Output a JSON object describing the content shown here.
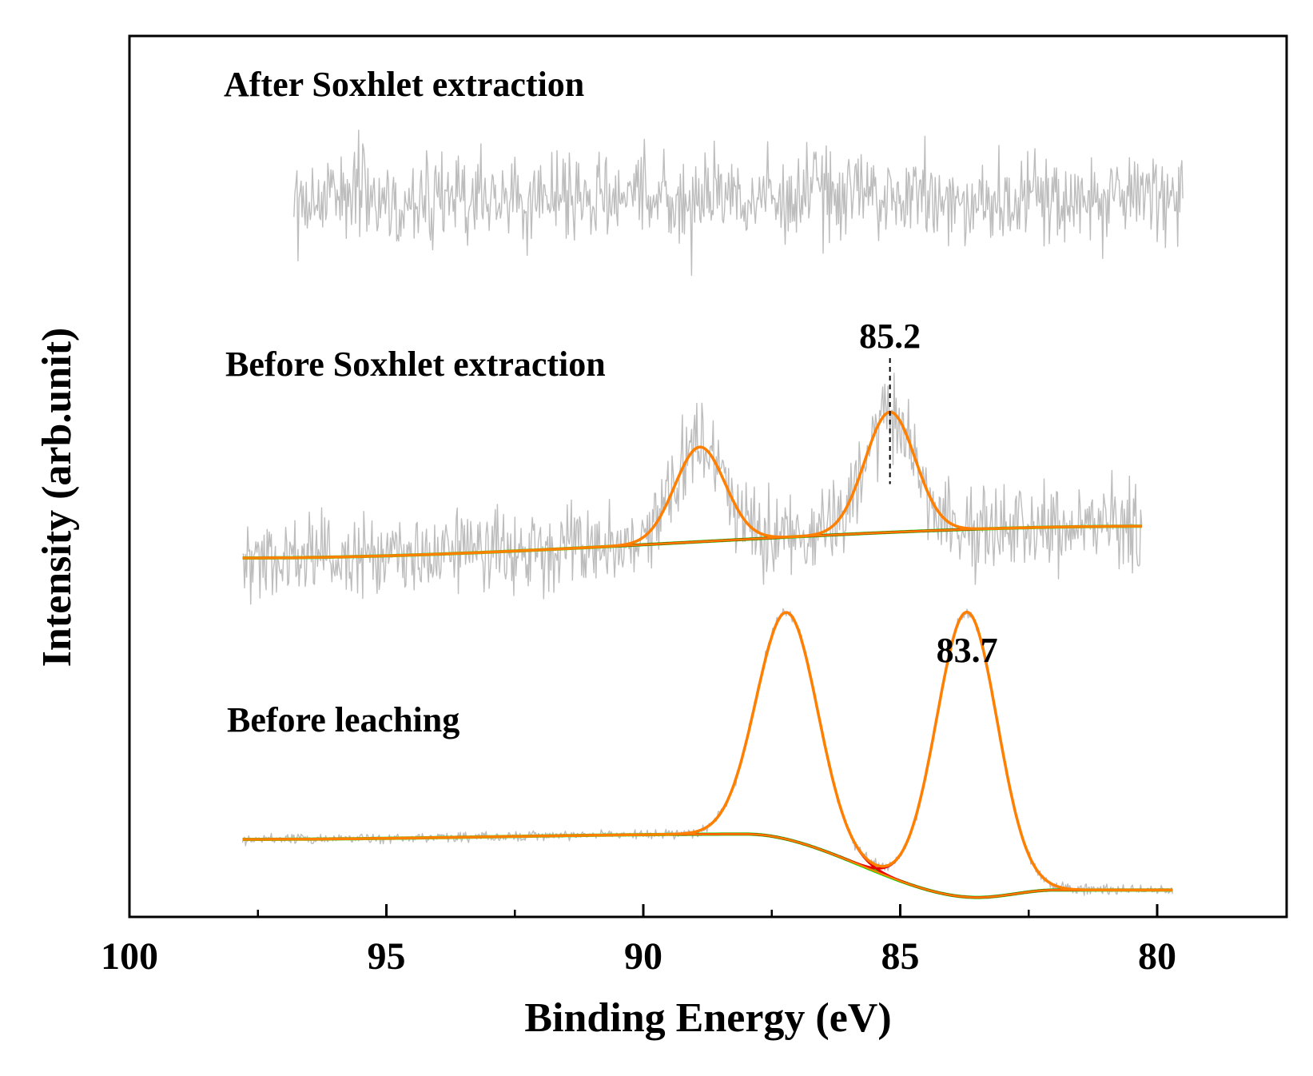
{
  "chart_data": {
    "type": "line",
    "title": "",
    "xlabel": "Binding Energy (eV)",
    "ylabel": "Intensity (arb.unit)",
    "xlim": [
      100,
      77.5
    ],
    "x_reversed": true,
    "x_ticks": [
      100,
      95,
      90,
      85,
      80
    ],
    "x_tick_labels": [
      "100",
      "95",
      "90",
      "85",
      "80"
    ],
    "x_minor_ticks": [
      97.5,
      92.5,
      87.5,
      82.5
    ],
    "y_ticks": [],
    "grid": false,
    "legend": "none",
    "colors": {
      "raw": "#bdbdbd",
      "fit": "#ff8000",
      "baseline": "#00dd00",
      "envelope": "#e60000",
      "frame": "#000000"
    },
    "annotations": [
      {
        "text": "85.2",
        "x": 85.2,
        "series": "Before Soxhlet extraction",
        "dashed_line": true
      },
      {
        "text": "83.7",
        "x": 83.7,
        "series": "Before leaching",
        "dashed_line": false
      }
    ],
    "series": [
      {
        "name": "After Soxhlet extraction",
        "x_range": [
          96.8,
          79.5
        ],
        "noise_only": true,
        "baseline": [
          [
            96.8,
            0.0
          ],
          [
            79.5,
            0.0
          ]
        ],
        "peaks": []
      },
      {
        "name": "Before Soxhlet extraction",
        "x_range": [
          97.8,
          80.3
        ],
        "noise_only": false,
        "baseline": [
          [
            97.8,
            0.0
          ],
          [
            80.3,
            0.62
          ]
        ],
        "peaks": [
          {
            "center": 88.9,
            "height": 1.85,
            "fwhm": 1.15
          },
          {
            "center": 85.2,
            "height": 2.35,
            "fwhm": 1.15
          }
        ]
      },
      {
        "name": "Before leaching",
        "x_range": [
          97.8,
          79.7
        ],
        "noise_only": false,
        "baseline": [
          [
            97.8,
            0.0
          ],
          [
            88.0,
            0.05
          ],
          [
            83.5,
            -0.55
          ],
          [
            82.0,
            -0.48
          ],
          [
            79.7,
            -0.48
          ]
        ],
        "peaks": [
          {
            "center": 87.2,
            "height": 2.15,
            "fwhm": 1.4
          },
          {
            "center": 83.7,
            "height": 2.7,
            "fwhm": 1.4
          }
        ]
      }
    ]
  }
}
